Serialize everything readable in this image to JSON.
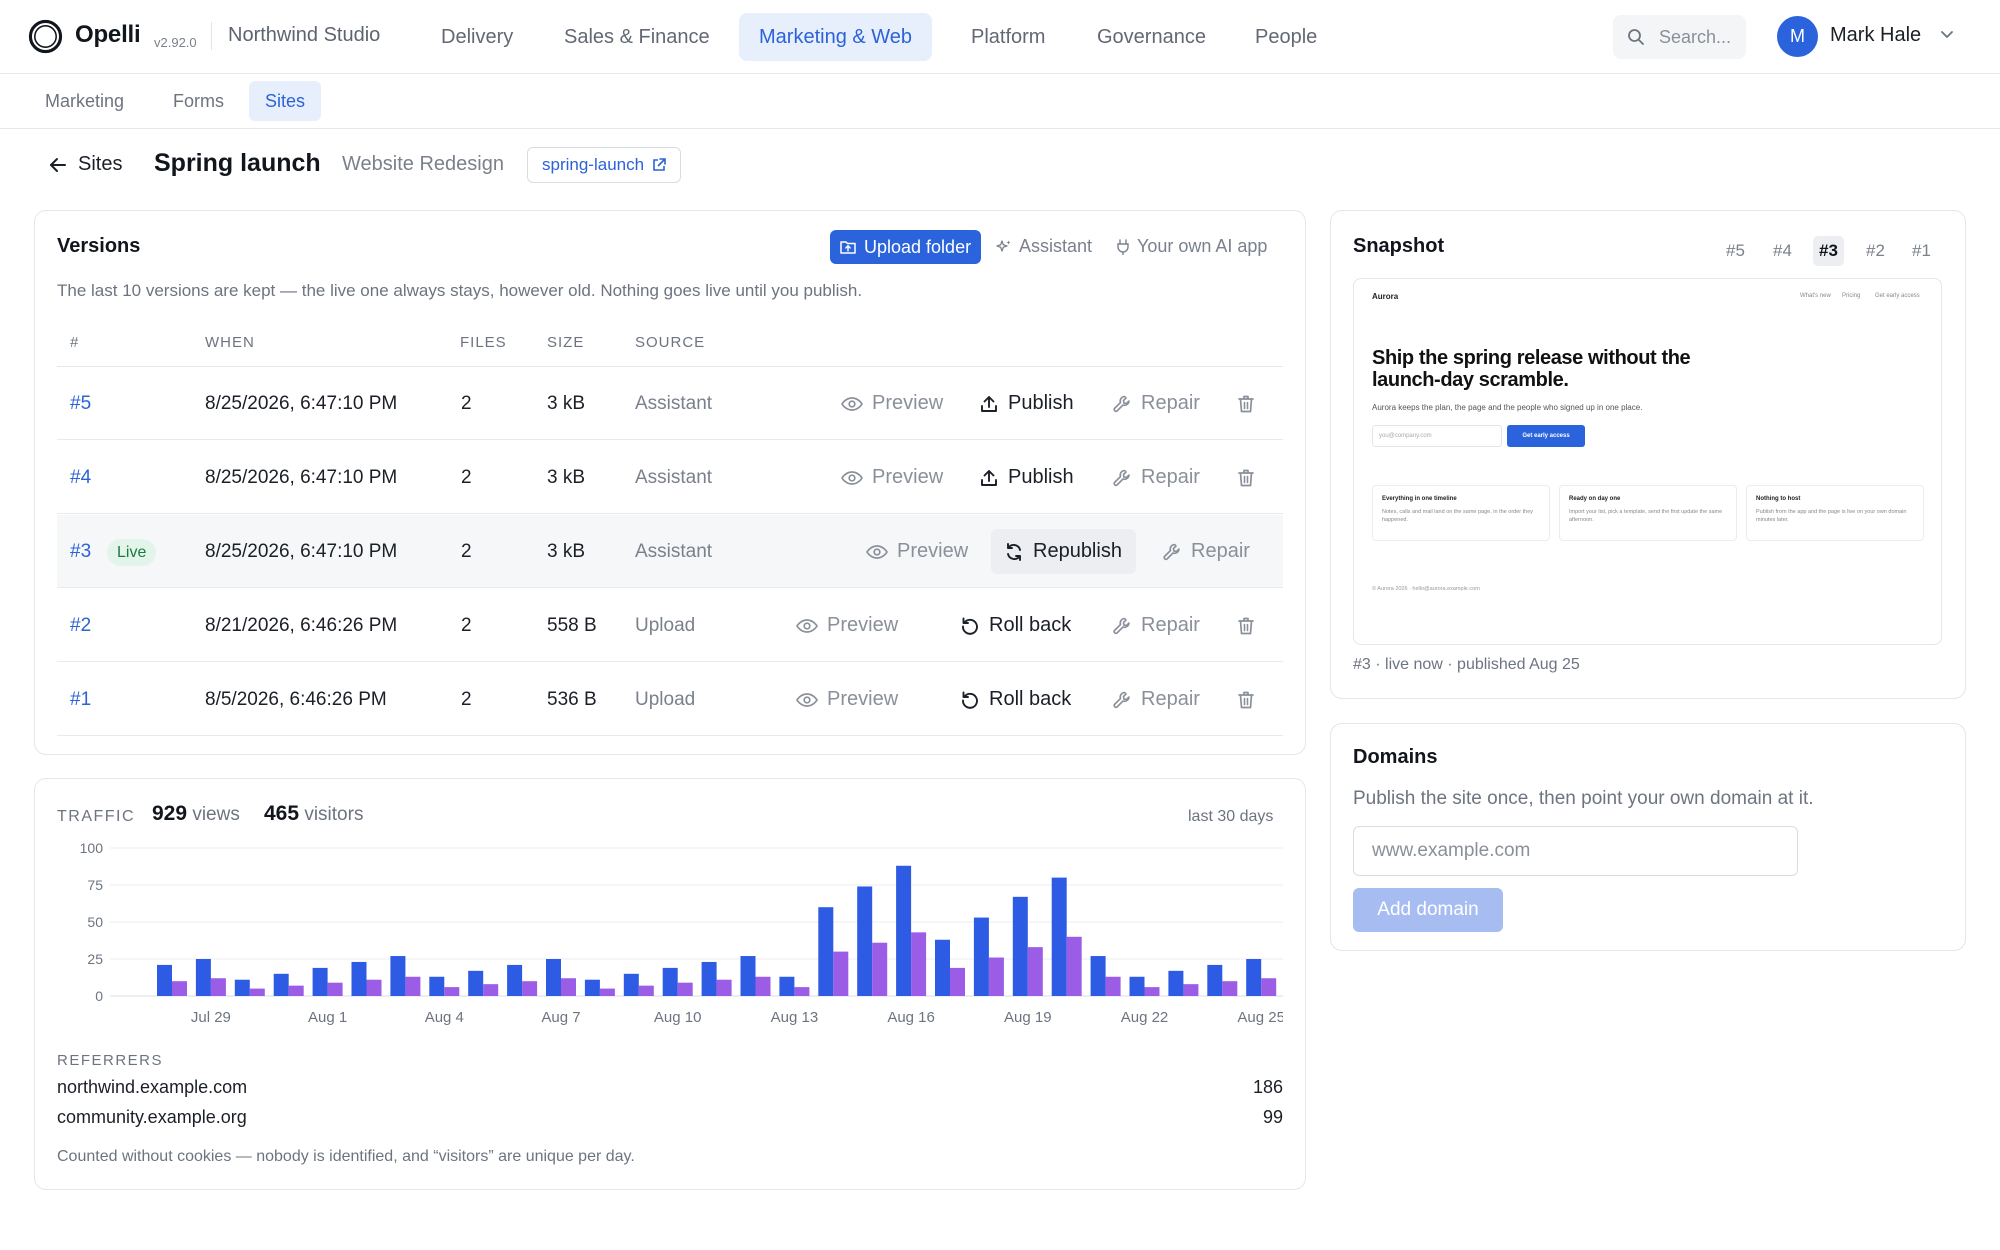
{
  "app": {
    "name": "Opelli",
    "version": "v2.92.0",
    "org": "Northwind Studio",
    "logo_icon": "ring-logo-icon"
  },
  "nav": {
    "items": [
      "Delivery",
      "Sales & Finance",
      "Marketing & Web",
      "Platform",
      "Governance",
      "People"
    ],
    "active": "Marketing & Web"
  },
  "search": {
    "placeholder": "Search..."
  },
  "user": {
    "initial": "M",
    "name": "Mark Hale"
  },
  "subnav": {
    "items": [
      "Marketing",
      "Forms",
      "Sites"
    ],
    "active": "Sites"
  },
  "breadcrumb": {
    "back_label": "Sites",
    "title": "Spring launch",
    "subtitle": "Website Redesign",
    "slug": "spring-launch"
  },
  "versions": {
    "title": "Versions",
    "upload_label": "Upload folder",
    "assistant_label": "Assistant",
    "own_ai_label": "Your own AI app",
    "note": "The last 10 versions are kept — the live one always stays, however old. Nothing goes live until you publish.",
    "columns": [
      "#",
      "WHEN",
      "FILES",
      "SIZE",
      "SOURCE"
    ],
    "live_label": "Live",
    "actions": {
      "preview": "Preview",
      "publish": "Publish",
      "republish": "Republish",
      "roll_back": "Roll back",
      "repair": "Repair"
    },
    "rows": [
      {
        "num": "#5",
        "when": "8/25/2026, 6:47:10 PM",
        "files": "2",
        "size": "3 kB",
        "source": "Assistant",
        "live": false,
        "primary": "Publish"
      },
      {
        "num": "#4",
        "when": "8/25/2026, 6:47:10 PM",
        "files": "2",
        "size": "3 kB",
        "source": "Assistant",
        "live": false,
        "primary": "Publish"
      },
      {
        "num": "#3",
        "when": "8/25/2026, 6:47:10 PM",
        "files": "2",
        "size": "3 kB",
        "source": "Assistant",
        "live": true,
        "primary": "Republish"
      },
      {
        "num": "#2",
        "when": "8/21/2026, 6:46:26 PM",
        "files": "2",
        "size": "558 B",
        "source": "Upload",
        "live": false,
        "primary": "Roll back"
      },
      {
        "num": "#1",
        "when": "8/5/2026, 6:46:26 PM",
        "files": "2",
        "size": "536 B",
        "source": "Upload",
        "live": false,
        "primary": "Roll back"
      }
    ]
  },
  "traffic": {
    "label": "TRAFFIC",
    "views": "929",
    "views_label": "views",
    "visitors": "465",
    "visitors_label": "visitors",
    "period": "last 30 days",
    "referrers_label": "REFERRERS",
    "referrers": [
      {
        "host": "northwind.example.com",
        "count": "186"
      },
      {
        "host": "community.example.org",
        "count": "99"
      }
    ],
    "footnote": "Counted without cookies — nobody is identified, and “visitors” are unique per day."
  },
  "chart_data": {
    "type": "bar",
    "categories": [
      "Jul 28",
      "Jul 29",
      "Jul 30",
      "Jul 31",
      "Aug 1",
      "Aug 2",
      "Aug 3",
      "Aug 4",
      "Aug 5",
      "Aug 6",
      "Aug 7",
      "Aug 8",
      "Aug 9",
      "Aug 10",
      "Aug 11",
      "Aug 12",
      "Aug 13",
      "Aug 14",
      "Aug 15",
      "Aug 16",
      "Aug 17",
      "Aug 18",
      "Aug 19",
      "Aug 20",
      "Aug 21",
      "Aug 22",
      "Aug 23",
      "Aug 24",
      "Aug 25"
    ],
    "tick_labels": [
      "Jul 29",
      "Aug 1",
      "Aug 4",
      "Aug 7",
      "Aug 10",
      "Aug 13",
      "Aug 16",
      "Aug 19",
      "Aug 22",
      "Aug 25"
    ],
    "series": [
      {
        "values": [
          21,
          25,
          11,
          15,
          19,
          23,
          27,
          13,
          17,
          21,
          25,
          11,
          15,
          19,
          23,
          27,
          13,
          60,
          74,
          88,
          38,
          53,
          67,
          80,
          27,
          13,
          17,
          21,
          25
        ],
        "color": "#2d5be3"
      },
      {
        "values": [
          10,
          12,
          5,
          7,
          9,
          11,
          13,
          6,
          8,
          10,
          12,
          5,
          7,
          9,
          11,
          13,
          6,
          30,
          36,
          43,
          19,
          26,
          33,
          40,
          13,
          6,
          8,
          10,
          12
        ],
        "color": "#9b5de5"
      }
    ],
    "ylim": [
      0,
      100
    ],
    "yticks": [
      0,
      25,
      50,
      75,
      100
    ],
    "grid": true,
    "legend": false
  },
  "snapshot": {
    "title": "Snapshot",
    "tabs": [
      "#5",
      "#4",
      "#3",
      "#2",
      "#1"
    ],
    "active": "#3",
    "caption": "#3 · live now · published Aug 25",
    "preview": {
      "brand": "Aurora",
      "links": [
        "What's new",
        "Pricing",
        "Get early access"
      ],
      "hero": "Ship the spring release without the launch-day scramble.",
      "lede": "Aurora keeps the plan, the page and the people who signed up in one place.",
      "input_placeholder": "you@company.com",
      "cta": "Get early access",
      "cards": [
        {
          "title": "Everything in one timeline",
          "body": "Notes, calls and mail land on the same page, in the order they happened."
        },
        {
          "title": "Ready on day one",
          "body": "Import your list, pick a template, send the first update the same afternoon."
        },
        {
          "title": "Nothing to host",
          "body": "Publish from the app and the page is live on your own domain minutes later."
        }
      ],
      "footer": "© Aurora 2026 · hello@aurora.example.com"
    }
  },
  "domains": {
    "title": "Domains",
    "note": "Publish the site once, then point your own domain at it.",
    "placeholder": "www.example.com",
    "add_label": "Add domain"
  }
}
